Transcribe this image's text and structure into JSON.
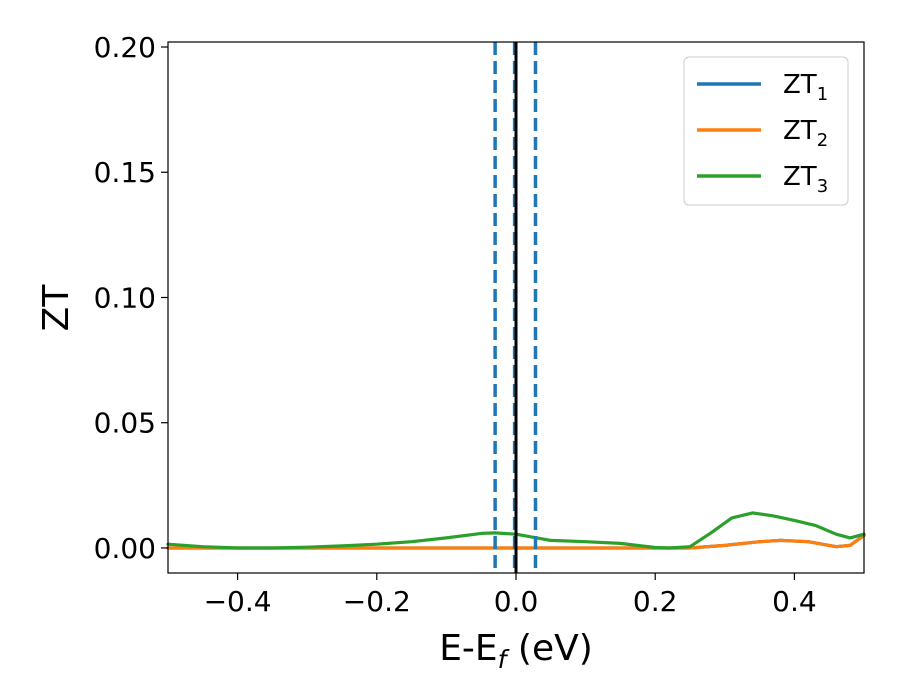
{
  "chart_data": {
    "type": "line",
    "xlabel": {
      "main": "E-E",
      "sub": "f",
      "tail": " (eV)"
    },
    "ylabel": "ZT",
    "xlim": [
      -0.5,
      0.5
    ],
    "ylim": [
      -0.01,
      0.202
    ],
    "grid": false,
    "legend_position": "top-right",
    "x_ticks": [
      -0.4,
      -0.2,
      0.0,
      0.2,
      0.4
    ],
    "x_tick_labels": [
      "−0.4",
      "−0.2",
      "0.0",
      "0.2",
      "0.4"
    ],
    "y_ticks": [
      0.0,
      0.05,
      0.1,
      0.15,
      0.2
    ],
    "y_tick_labels": [
      "0.00",
      "0.05",
      "0.10",
      "0.15",
      "0.20"
    ],
    "vlines": [
      {
        "x": -0.03,
        "color": "#1f77b4",
        "style": "dashed"
      },
      {
        "x": -0.002,
        "color": "#1f77b4",
        "style": "dashed"
      },
      {
        "x": 0.028,
        "color": "#1f77b4",
        "style": "dashed"
      },
      {
        "x": 0.0,
        "color": "#000000",
        "style": "solid"
      }
    ],
    "series": [
      {
        "name": "ZT",
        "sub": "1",
        "color": "#1f77b4",
        "x": [
          -0.5,
          -0.4,
          -0.3,
          -0.2,
          -0.1,
          0.0,
          0.1,
          0.2,
          0.25,
          0.3,
          0.35,
          0.38,
          0.42,
          0.46,
          0.48,
          0.5
        ],
        "y": [
          0.0,
          0.0,
          0.0,
          0.0,
          0.0,
          0.0,
          0.0,
          0.0,
          0.0,
          0.001,
          0.0025,
          0.003,
          0.0025,
          0.0005,
          0.001,
          0.005
        ]
      },
      {
        "name": "ZT",
        "sub": "2",
        "color": "#ff7f0e",
        "x": [
          -0.5,
          -0.4,
          -0.3,
          -0.2,
          -0.1,
          0.0,
          0.1,
          0.2,
          0.25,
          0.3,
          0.35,
          0.38,
          0.42,
          0.46,
          0.48,
          0.5
        ],
        "y": [
          0.0,
          0.0,
          0.0,
          0.0,
          0.0,
          0.0,
          0.0,
          0.0,
          0.0,
          0.001,
          0.0025,
          0.003,
          0.0025,
          0.0005,
          0.001,
          0.005
        ]
      },
      {
        "name": "ZT",
        "sub": "3",
        "color": "#2ca02c",
        "x": [
          -0.5,
          -0.45,
          -0.4,
          -0.35,
          -0.3,
          -0.25,
          -0.2,
          -0.15,
          -0.1,
          -0.05,
          -0.03,
          0.0,
          0.05,
          0.1,
          0.15,
          0.2,
          0.22,
          0.25,
          0.28,
          0.31,
          0.34,
          0.37,
          0.4,
          0.43,
          0.46,
          0.48,
          0.5
        ],
        "y": [
          0.0015,
          0.0005,
          0.0,
          0.0,
          0.0003,
          0.0008,
          0.0015,
          0.0025,
          0.004,
          0.0058,
          0.006,
          0.0055,
          0.003,
          0.0025,
          0.0018,
          0.0002,
          0.0,
          0.0005,
          0.006,
          0.012,
          0.014,
          0.0128,
          0.011,
          0.009,
          0.0055,
          0.004,
          0.0055
        ]
      }
    ]
  }
}
